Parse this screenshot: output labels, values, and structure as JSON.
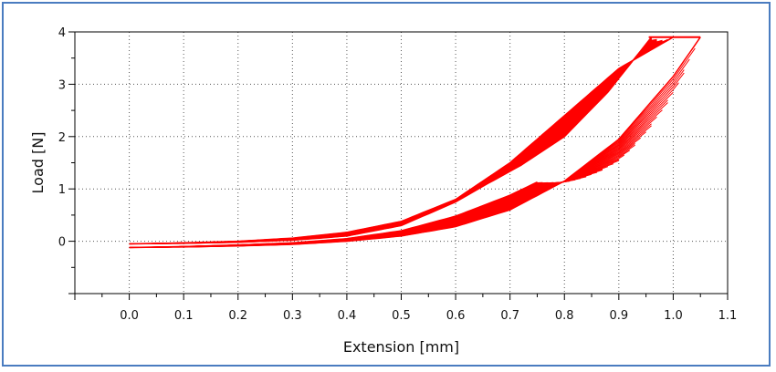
{
  "chart_data": {
    "type": "line",
    "title": "",
    "xlabel": "Extension [mm]",
    "ylabel": "Load [N]",
    "xlim": [
      -0.1,
      1.1
    ],
    "ylim": [
      -1,
      4
    ],
    "x_ticks": [
      "0.0",
      "0.1",
      "0.2",
      "0.3",
      "0.4",
      "0.5",
      "0.6",
      "0.7",
      "0.8",
      "0.9",
      "1.0",
      "1.1"
    ],
    "y_ticks": [
      "0",
      "1",
      "2",
      "3",
      "4"
    ],
    "grid": true,
    "series_color": "#ff0000",
    "band_count": 40,
    "series": [
      {
        "x": [
          0.0,
          0.1,
          0.2,
          0.3,
          0.4,
          0.5,
          0.6,
          0.7,
          0.8,
          0.9,
          1.0
        ],
        "y": [
          -0.05,
          -0.03,
          0.0,
          0.06,
          0.17,
          0.38,
          0.8,
          1.5,
          2.4,
          3.3,
          3.9
        ]
      },
      {
        "x": [
          0.0,
          0.1,
          0.2,
          0.3,
          0.4,
          0.5,
          0.6,
          0.65,
          0.72,
          0.8,
          0.88,
          0.96
        ],
        "y": [
          -0.05,
          -0.04,
          -0.02,
          0.02,
          0.1,
          0.3,
          0.75,
          1.05,
          1.45,
          2.0,
          2.85,
          3.9
        ]
      },
      {
        "x": [
          0.0,
          0.1,
          0.2,
          0.3,
          0.4,
          0.5,
          0.6,
          0.7,
          0.75
        ],
        "y": [
          -0.12,
          -0.1,
          -0.07,
          -0.03,
          0.05,
          0.2,
          0.48,
          0.88,
          1.13
        ]
      },
      {
        "x": [
          0.0,
          0.1,
          0.2,
          0.3,
          0.4,
          0.5,
          0.6,
          0.7,
          0.8,
          0.9,
          1.0,
          1.05
        ],
        "y": [
          -0.12,
          -0.11,
          -0.09,
          -0.06,
          0.0,
          0.1,
          0.28,
          0.6,
          1.15,
          1.95,
          3.15,
          3.9
        ]
      }
    ]
  }
}
